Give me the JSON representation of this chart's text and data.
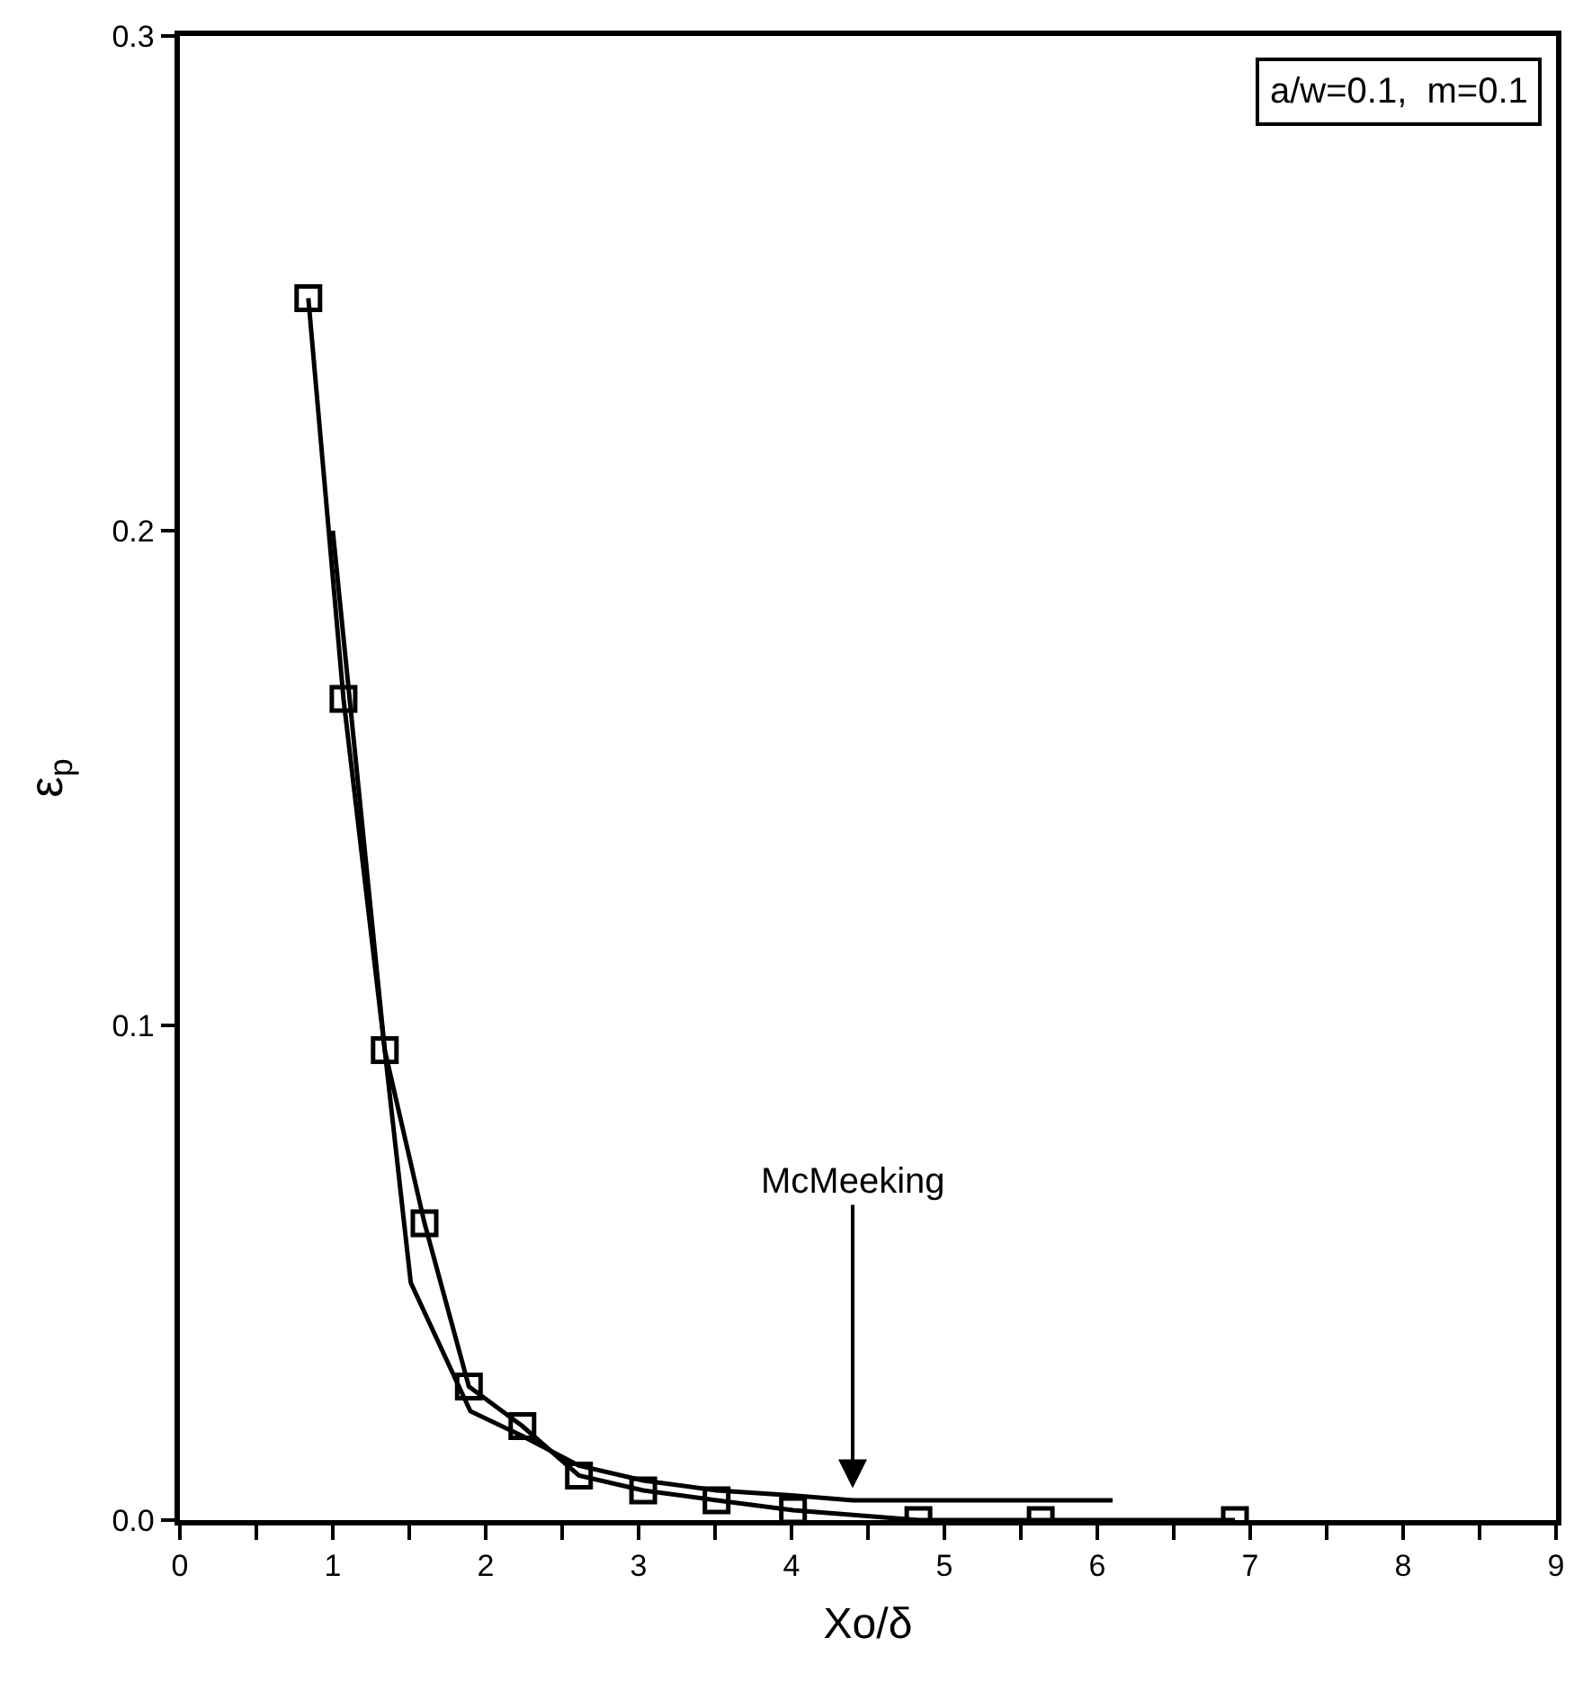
{
  "chart_data": {
    "type": "line",
    "xlabel": "Xo/δ",
    "ylabel": "ε$_{p}$",
    "xlim": [
      0,
      9
    ],
    "ylim": [
      0,
      0.3
    ],
    "xticks": [
      0,
      {
        "value": 0.5,
        "label": null
      },
      1,
      {
        "value": 1.5,
        "label": null
      },
      2,
      {
        "value": 2.5,
        "label": null
      },
      3,
      {
        "value": 3.5,
        "label": null
      },
      4,
      {
        "value": 4.5,
        "label": null
      },
      5,
      {
        "value": 5.5,
        "label": null
      },
      6,
      {
        "value": 6.5,
        "label": null
      },
      7,
      {
        "value": 7.5,
        "label": null
      },
      8,
      {
        "value": 8.5,
        "label": null
      },
      9
    ],
    "yticks": [
      {
        "value": 0,
        "label": "0.0"
      },
      0.1,
      0.2,
      0.3
    ],
    "series": [
      {
        "color": "#000000",
        "marker": "square",
        "x": [
          0.84,
          1.07,
          1.34,
          1.6,
          1.89,
          2.24,
          2.61,
          3.03,
          3.51,
          4.01,
          4.83,
          5.63,
          6.9
        ],
        "values": [
          0.247,
          0.166,
          0.095,
          0.06,
          0.027,
          0.019,
          0.009,
          0.006,
          0.004,
          0.002,
          0.0,
          0.0,
          0.0
        ]
      },
      {
        "color": "#000000",
        "marker": "none",
        "x": [
          1.0,
          1.34,
          1.51,
          1.9,
          2.24,
          2.61,
          3.03,
          3.51,
          4.0,
          4.4,
          6.1
        ],
        "values": [
          0.2,
          0.095,
          0.048,
          0.022,
          0.017,
          0.011,
          0.008,
          0.006,
          0.005,
          0.004,
          0.004
        ]
      }
    ],
    "annotations": [
      {
        "text": "McMeeking",
        "x": 4.4,
        "y": 0.005
      },
      "a/w=0.1,  m=0.1"
    ]
  }
}
